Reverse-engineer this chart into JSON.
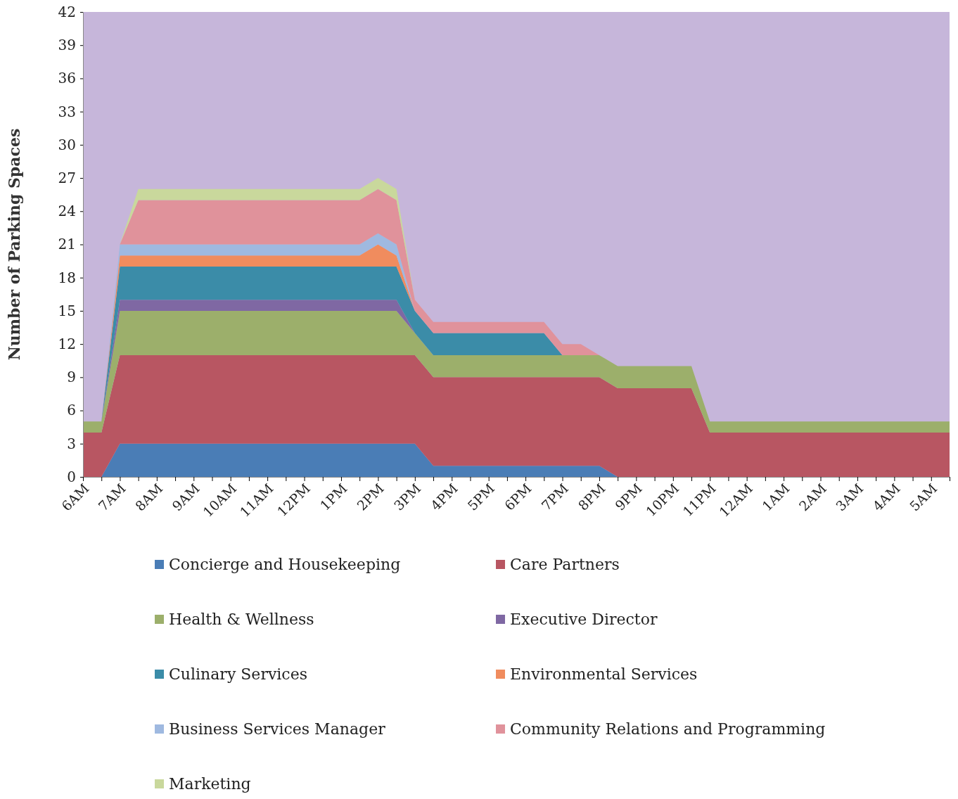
{
  "chart_data": {
    "type": "area",
    "stacked": true,
    "ylabel": "Number of Parking Spaces",
    "ylim": [
      0,
      42
    ],
    "yticks": [
      0,
      3,
      6,
      9,
      12,
      15,
      18,
      21,
      24,
      27,
      30,
      33,
      36,
      39,
      42
    ],
    "grid": false,
    "legend": "bottom",
    "categories": [
      "6AM",
      null,
      "7AM",
      null,
      "8AM",
      null,
      "9AM",
      null,
      "10AM",
      null,
      "11AM",
      null,
      "12PM",
      null,
      "1PM",
      null,
      "2PM",
      null,
      "3PM",
      null,
      "4PM",
      null,
      "5PM",
      null,
      "6PM",
      null,
      "7PM",
      null,
      "8PM",
      null,
      "9PM",
      null,
      "10PM",
      null,
      "11PM",
      null,
      "12AM",
      null,
      "1AM",
      null,
      "2AM",
      null,
      "3AM",
      null,
      "4AM",
      null,
      "5AM",
      null
    ],
    "series": [
      {
        "name": "Concierge and Housekeeping",
        "color": "#4a7db6",
        "values": [
          0,
          0,
          3,
          3,
          3,
          3,
          3,
          3,
          3,
          3,
          3,
          3,
          3,
          3,
          3,
          3,
          3,
          3,
          3,
          1,
          1,
          1,
          1,
          1,
          1,
          1,
          1,
          1,
          1,
          0,
          0,
          0,
          0,
          0,
          0,
          0,
          0,
          0,
          0,
          0,
          0,
          0,
          0,
          0,
          0,
          0,
          0,
          0
        ]
      },
      {
        "name": "Care Partners",
        "color": "#b85662",
        "values": [
          4,
          4,
          8,
          8,
          8,
          8,
          8,
          8,
          8,
          8,
          8,
          8,
          8,
          8,
          8,
          8,
          8,
          8,
          8,
          8,
          8,
          8,
          8,
          8,
          8,
          8,
          8,
          8,
          8,
          8,
          8,
          8,
          8,
          8,
          4,
          4,
          4,
          4,
          4,
          4,
          4,
          4,
          4,
          4,
          4,
          4,
          4,
          4
        ]
      },
      {
        "name": "Health & Wellness",
        "color": "#9caf6b",
        "values": [
          1,
          1,
          4,
          4,
          4,
          4,
          4,
          4,
          4,
          4,
          4,
          4,
          4,
          4,
          4,
          4,
          4,
          4,
          2,
          2,
          2,
          2,
          2,
          2,
          2,
          2,
          2,
          2,
          2,
          2,
          2,
          2,
          2,
          2,
          1,
          1,
          1,
          1,
          1,
          1,
          1,
          1,
          1,
          1,
          1,
          1,
          1,
          1
        ]
      },
      {
        "name": "Executive Director",
        "color": "#7f68a3",
        "values": [
          0,
          0,
          1,
          1,
          1,
          1,
          1,
          1,
          1,
          1,
          1,
          1,
          1,
          1,
          1,
          1,
          1,
          1,
          0,
          0,
          0,
          0,
          0,
          0,
          0,
          0,
          0,
          0,
          0,
          0,
          0,
          0,
          0,
          0,
          0,
          0,
          0,
          0,
          0,
          0,
          0,
          0,
          0,
          0,
          0,
          0,
          0,
          0
        ]
      },
      {
        "name": "Culinary Services",
        "color": "#3b8ca8",
        "values": [
          0,
          0,
          3,
          3,
          3,
          3,
          3,
          3,
          3,
          3,
          3,
          3,
          3,
          3,
          3,
          3,
          3,
          3,
          2,
          2,
          2,
          2,
          2,
          2,
          2,
          2,
          0,
          0,
          0,
          0,
          0,
          0,
          0,
          0,
          0,
          0,
          0,
          0,
          0,
          0,
          0,
          0,
          0,
          0,
          0,
          0,
          0,
          0
        ]
      },
      {
        "name": "Environmental Services",
        "color": "#f08c5e",
        "values": [
          0,
          0,
          1,
          1,
          1,
          1,
          1,
          1,
          1,
          1,
          1,
          1,
          1,
          1,
          1,
          1,
          2,
          1,
          0,
          0,
          0,
          0,
          0,
          0,
          0,
          0,
          0,
          0,
          0,
          0,
          0,
          0,
          0,
          0,
          0,
          0,
          0,
          0,
          0,
          0,
          0,
          0,
          0,
          0,
          0,
          0,
          0,
          0
        ]
      },
      {
        "name": "Business Services Manager",
        "color": "#9fb9e0",
        "values": [
          0,
          0,
          1,
          1,
          1,
          1,
          1,
          1,
          1,
          1,
          1,
          1,
          1,
          1,
          1,
          1,
          1,
          1,
          0,
          0,
          0,
          0,
          0,
          0,
          0,
          0,
          0,
          0,
          0,
          0,
          0,
          0,
          0,
          0,
          0,
          0,
          0,
          0,
          0,
          0,
          0,
          0,
          0,
          0,
          0,
          0,
          0,
          0
        ]
      },
      {
        "name": "Community Relations and Programming",
        "color": "#e0929b",
        "values": [
          0,
          0,
          0,
          4,
          4,
          4,
          4,
          4,
          4,
          4,
          4,
          4,
          4,
          4,
          4,
          4,
          4,
          4,
          1,
          1,
          1,
          1,
          1,
          1,
          1,
          1,
          1,
          1,
          0,
          0,
          0,
          0,
          0,
          0,
          0,
          0,
          0,
          0,
          0,
          0,
          0,
          0,
          0,
          0,
          0,
          0,
          0,
          0
        ]
      },
      {
        "name": "Marketing",
        "color": "#c9d89c",
        "values": [
          0,
          0,
          0,
          1,
          1,
          1,
          1,
          1,
          1,
          1,
          1,
          1,
          1,
          1,
          1,
          1,
          1,
          1,
          0,
          0,
          0,
          0,
          0,
          0,
          0,
          0,
          0,
          0,
          0,
          0,
          0,
          0,
          0,
          0,
          0,
          0,
          0,
          0,
          0,
          0,
          0,
          0,
          0,
          0,
          0,
          0,
          0,
          0
        ]
      }
    ]
  }
}
